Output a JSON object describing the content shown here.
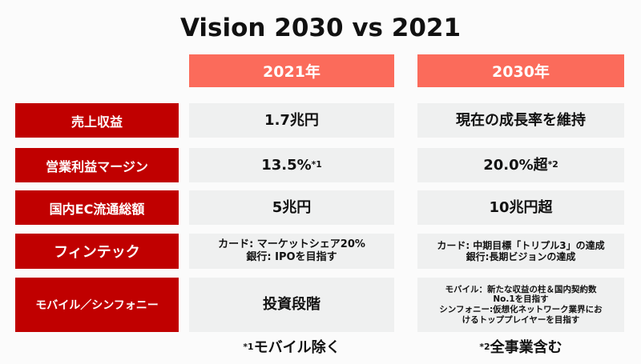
{
  "title": "Vision 2030 vs 2021",
  "headers": [
    "2021年",
    "2030年"
  ],
  "rows": [
    {
      "label": "売上収益",
      "y2021": "1.7兆円",
      "y2030": "現在の成長率を維持"
    },
    {
      "label": "営業利益マージン",
      "y2021": "13.5%",
      "y2021_note": "*1",
      "y2030": "20.0%超",
      "y2030_note": "*2"
    },
    {
      "label": "国内EC流通総額",
      "y2021": "5兆円",
      "y2030": "10兆円超"
    },
    {
      "label": "フィンテック",
      "y2021_lines": [
        "カード: マーケットシェア20%",
        "銀行: IPOを目指す"
      ],
      "y2030_lines": [
        "カード: 中期目標「トリプル3」の達成",
        "銀行:長期ビジョンの達成"
      ]
    },
    {
      "label": "モバイル／シンフォニー",
      "y2021": "投資段階",
      "y2030_lines": [
        "モバイル：新たな収益の柱＆国内契約数",
        "No.1を目指す",
        "シンフォニー:仮想化ネットワーク業界にお",
        "けるトッププレイヤーを目指す"
      ]
    }
  ],
  "footnotes": [
    {
      "mark": "*1",
      "text": "モバイル除く"
    },
    {
      "mark": "*2",
      "text": "全事業含む"
    }
  ],
  "colors": {
    "label": "#c00000",
    "header": "#fb6b5b",
    "cell": "#eff0f0"
  }
}
